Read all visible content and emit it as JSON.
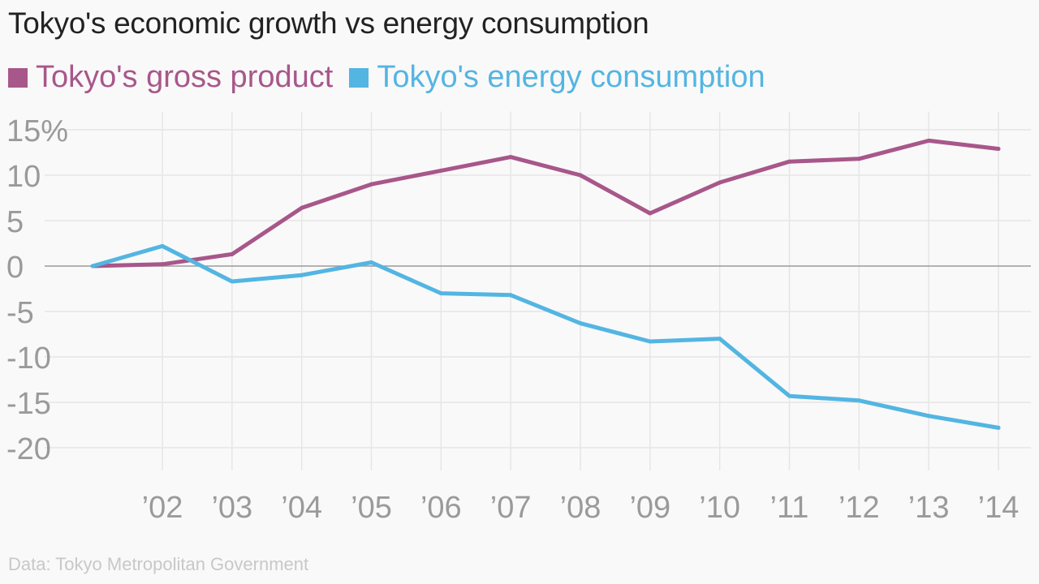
{
  "chart_data": {
    "type": "line",
    "title": "Tokyo's economic growth vs energy consumption",
    "x": [
      2001,
      2002,
      2003,
      2004,
      2005,
      2006,
      2007,
      2008,
      2009,
      2010,
      2011,
      2012,
      2013,
      2014
    ],
    "x_tick_values": [
      2002,
      2003,
      2004,
      2005,
      2006,
      2007,
      2008,
      2009,
      2010,
      2011,
      2012,
      2013,
      2014
    ],
    "x_tick_labels": [
      "’02",
      "’03",
      "’04",
      "’05",
      "’06",
      "’07",
      "’08",
      "’09",
      "’10",
      "’11",
      "’12",
      "’13",
      "’14"
    ],
    "y_ticks": [
      15,
      10,
      5,
      0,
      -5,
      -10,
      -15,
      -20
    ],
    "y_tick_labels": [
      "15%",
      "10",
      "5",
      "0",
      "-5",
      "-10",
      "-15",
      "-20"
    ],
    "ylim": [
      -22.5,
      17
    ],
    "xlim": [
      2000,
      2014.5
    ],
    "grid": true,
    "legend_position": "top-left",
    "series": [
      {
        "name": "Tokyo's gross product",
        "color": "#a8578a",
        "values": [
          0,
          0.2,
          1.3,
          6.4,
          9.0,
          10.5,
          12.0,
          10.0,
          5.8,
          9.2,
          11.5,
          11.8,
          13.8,
          12.9
        ]
      },
      {
        "name": "Tokyo's energy consumption",
        "color": "#53b5e2",
        "values": [
          0,
          2.2,
          -1.7,
          -1.0,
          0.4,
          -3.0,
          -3.2,
          -6.3,
          -8.3,
          -8.0,
          -14.3,
          -14.8,
          -16.5,
          -17.8
        ]
      }
    ],
    "source": "Data: Tokyo Metropolitan Government"
  }
}
